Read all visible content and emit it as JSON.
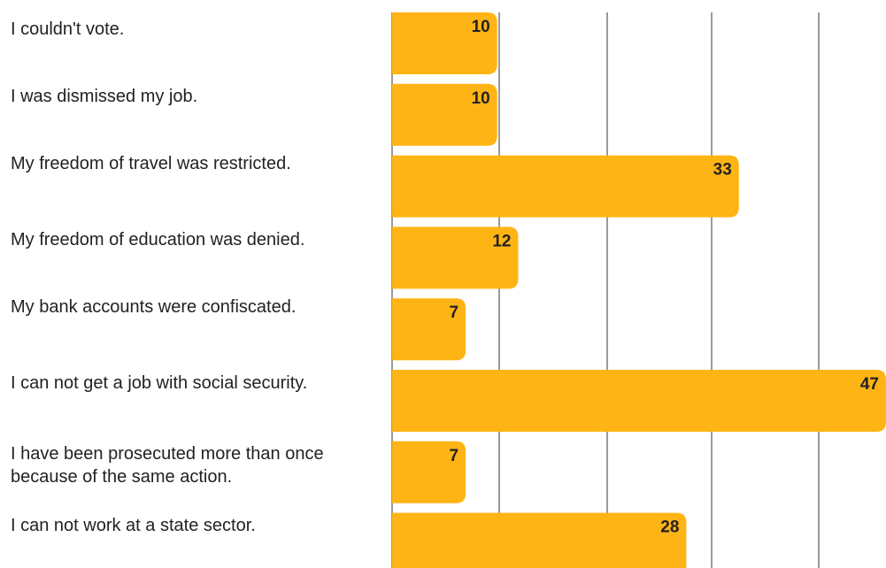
{
  "chart_data": {
    "type": "bar",
    "orientation": "horizontal",
    "categories": [
      "I couldn't vote.",
      "I was dismissed my job.",
      "My freedom of travel was restricted.",
      "My freedom of education was denied.",
      "My bank accounts were confiscated.",
      "I can not get a job with social security.",
      "I have been prosecuted more than once because of the same action.",
      "I can not work at a state sector."
    ],
    "values": [
      10,
      10,
      33,
      12,
      7,
      47,
      7,
      28
    ],
    "xlim": [
      0,
      47
    ],
    "grid": true,
    "bar_color": "#FFB415",
    "grid_color": "#7a7a7a",
    "label_color": "#222222"
  }
}
